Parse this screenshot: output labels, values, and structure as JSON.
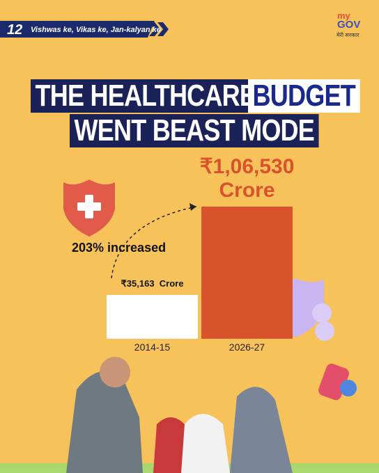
{
  "header": {
    "badge": "12",
    "tagline": "Vishwas ke, Vikas ke, Jan-kalyan ke"
  },
  "logo": {
    "top": "my",
    "main": "GOV",
    "sub": "मेरी सरकार"
  },
  "chart_data": {
    "type": "bar",
    "title_segments": [
      "THE HEALTHCARE",
      "BUDGET",
      "WENT BEAST MODE"
    ],
    "annotation": "203% increased",
    "categories": [
      "2014-15",
      "2026-27"
    ],
    "values": [
      35163,
      106530
    ],
    "value_labels": [
      "₹35,163  Crore",
      "₹1,06,530 Crore"
    ],
    "colors": [
      "#ffffff",
      "#d8532c"
    ]
  }
}
